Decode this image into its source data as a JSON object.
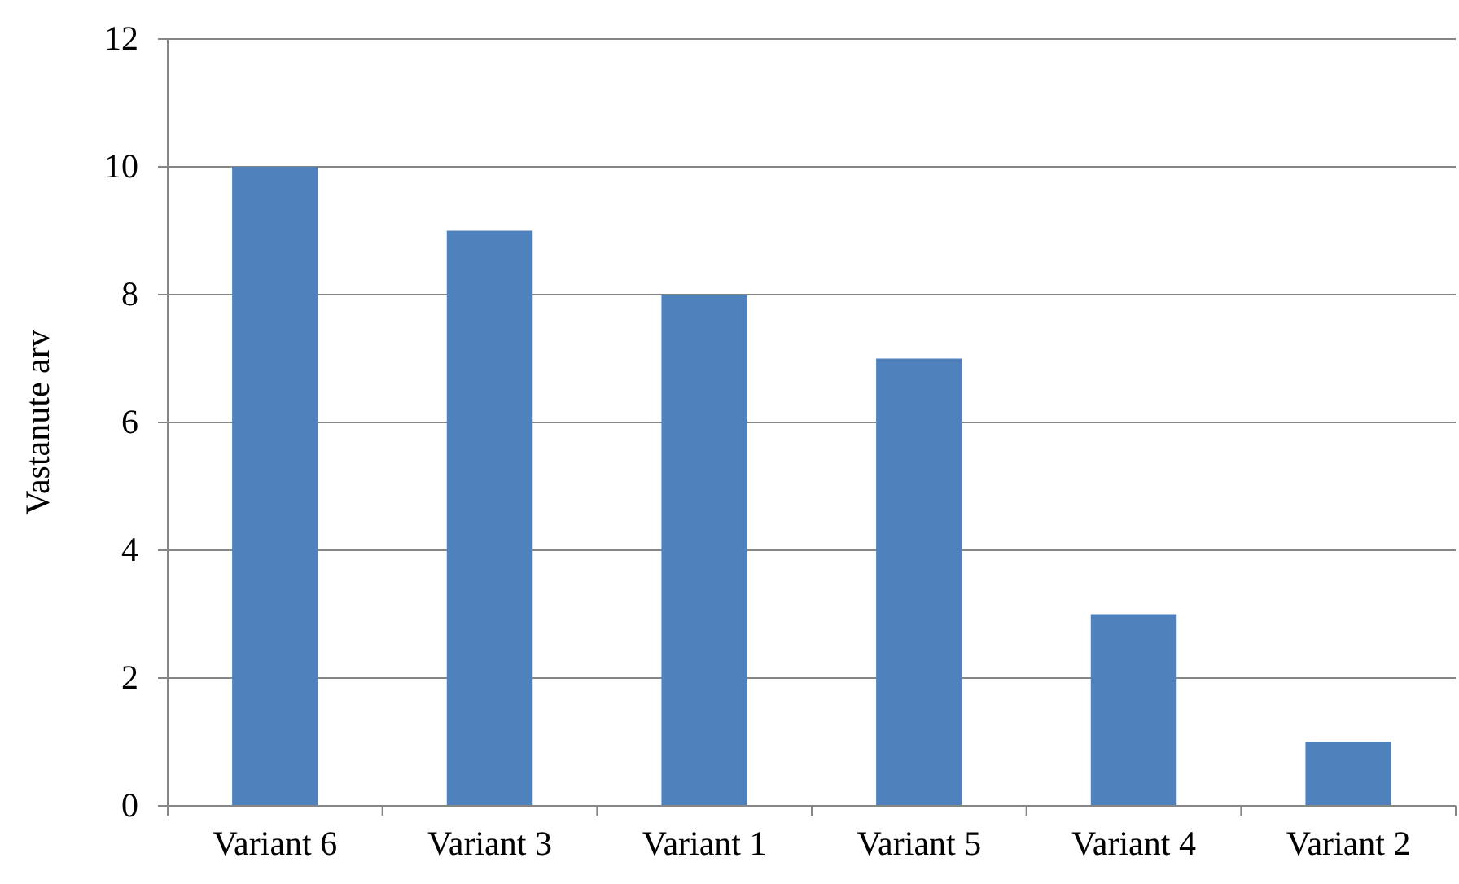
{
  "chart_data": {
    "type": "bar",
    "ylabel": "Vastanute arv",
    "categories": [
      "Variant 6",
      "Variant 3",
      "Variant 1",
      "Variant 5",
      "Variant 4",
      "Variant 2"
    ],
    "values": [
      10,
      9,
      8,
      7,
      3,
      1
    ],
    "color": "#4f81bd",
    "ylim": [
      0,
      12
    ],
    "yticks": [
      0,
      2,
      4,
      6,
      8,
      10,
      12
    ],
    "grid": "y"
  }
}
